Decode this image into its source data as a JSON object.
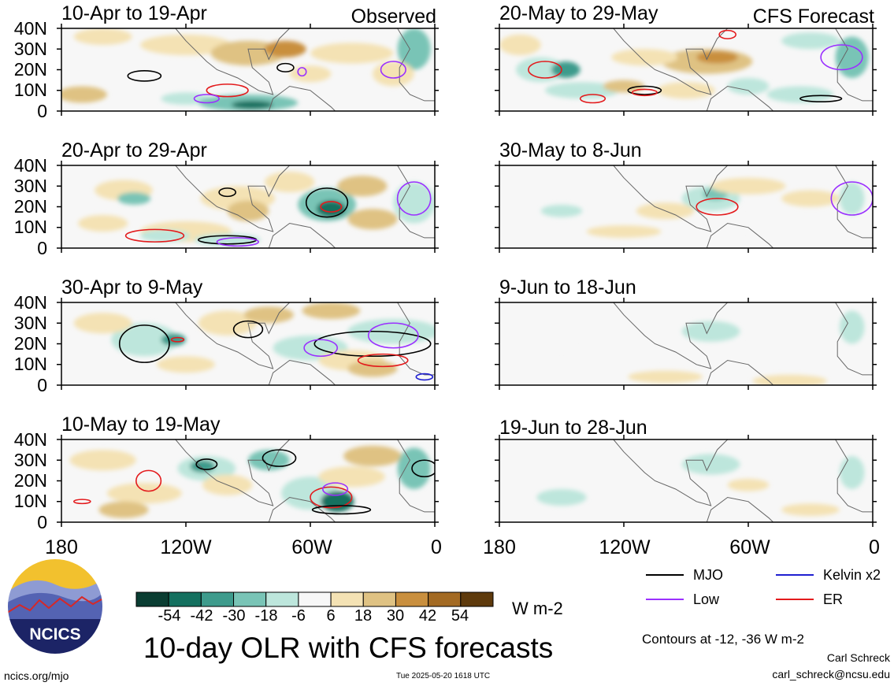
{
  "chart_data": {
    "type": "heatmap",
    "title": "10-day OLR with CFS forecasts",
    "units": "W m-2",
    "contour_note": "Contours at -12, -36 W m-2",
    "x_axis": {
      "range": [
        -180,
        0
      ],
      "tick_labels": [
        "180",
        "120W",
        "60W",
        "0"
      ],
      "tick_values": [
        -180,
        -120,
        -60,
        0
      ]
    },
    "y_axis": {
      "range": [
        0,
        40
      ],
      "tick_labels": [
        "40N",
        "30N",
        "20N",
        "10N",
        "0"
      ],
      "tick_values": [
        40,
        30,
        20,
        10,
        0
      ]
    },
    "colorbar": {
      "tick_labels": [
        "-54",
        "-42",
        "-30",
        "-18",
        "-6",
        "6",
        "18",
        "30",
        "42",
        "54"
      ],
      "colors": [
        "#0a3d32",
        "#14705f",
        "#3e9b8c",
        "#79c4b6",
        "#bde6dc",
        "#f7f7f7",
        "#f4e2b4",
        "#dfc283",
        "#c98f3e",
        "#a36a23",
        "#5e3a0c"
      ]
    },
    "legend": [
      {
        "label": "MJO",
        "color": "#000000"
      },
      {
        "label": "Kelvin x2",
        "color": "#1f1fd1"
      },
      {
        "label": "Low",
        "color": "#9b30ff"
      },
      {
        "label": "ER",
        "color": "#e31a1c"
      }
    ],
    "panels": [
      {
        "period": "10-Apr to 19-Apr",
        "source": "Observed",
        "column": 0,
        "row": 0
      },
      {
        "period": "20-Apr to 29-Apr",
        "source": "",
        "column": 0,
        "row": 1
      },
      {
        "period": "30-Apr to 9-May",
        "source": "",
        "column": 0,
        "row": 2
      },
      {
        "period": "10-May to 19-May",
        "source": "",
        "column": 0,
        "row": 3
      },
      {
        "period": "20-May to 29-May",
        "source": "CFS Forecast",
        "column": 1,
        "row": 0
      },
      {
        "period": "30-May to 8-Jun",
        "source": "",
        "column": 1,
        "row": 1
      },
      {
        "period": "9-Jun to 18-Jun",
        "source": "",
        "column": 1,
        "row": 2
      },
      {
        "period": "19-Jun to 28-Jun",
        "source": "",
        "column": 1,
        "row": 3
      }
    ]
  },
  "footer": {
    "logo_text": "NCICS",
    "url": "ncics.org/mjo",
    "timestamp": "Tue 2025-05-20 1618 UTC",
    "author": "Carl Schreck",
    "email": "carl_schreck@ncsu.edu"
  }
}
